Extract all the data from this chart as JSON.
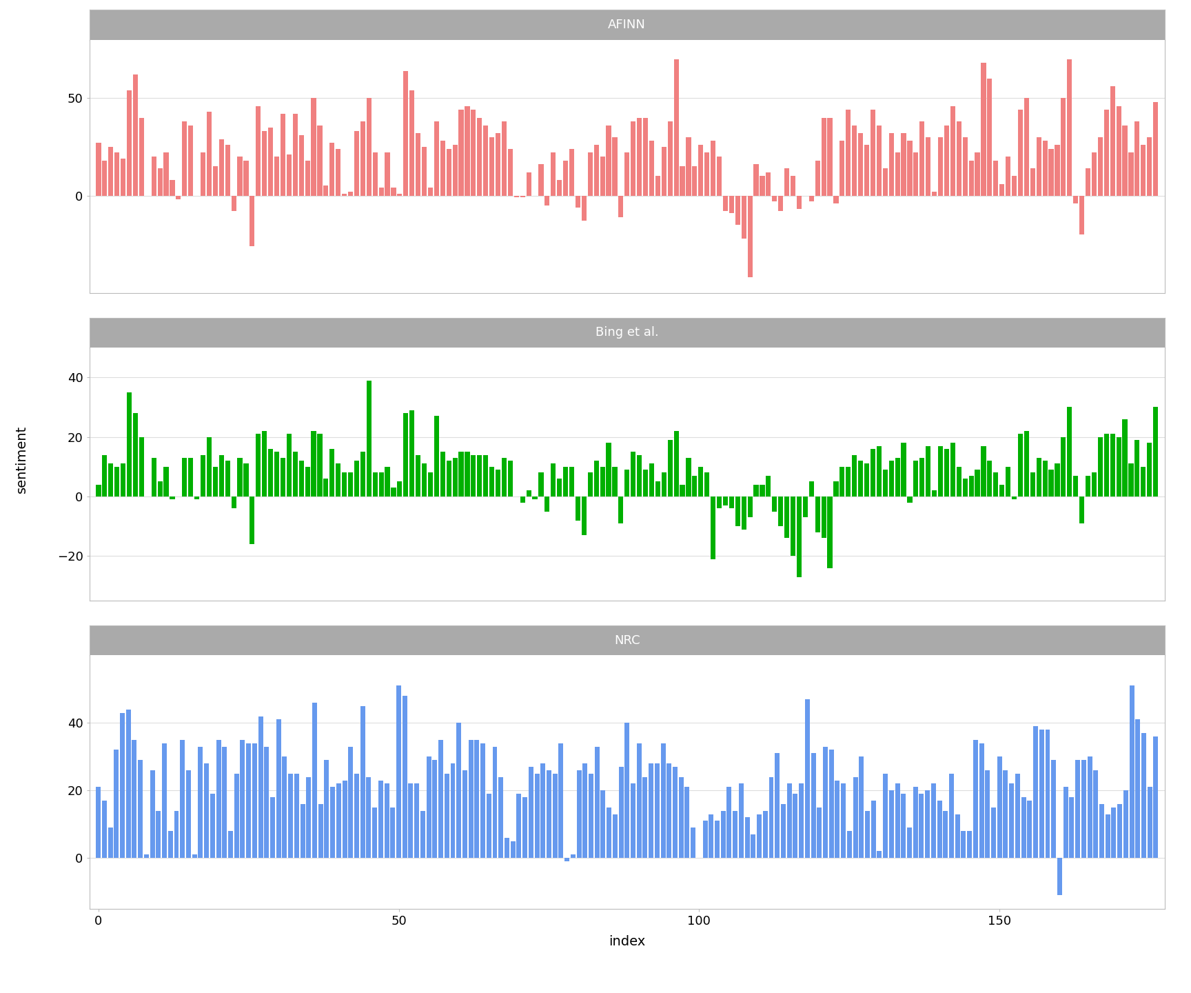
{
  "title_afinn": "AFINN",
  "title_bing": "Bing et al.",
  "title_nrc": "NRC",
  "xlabel": "index",
  "ylabel": "sentiment",
  "color_afinn": "#F08080",
  "color_bing": "#00B000",
  "color_nrc": "#6699EE",
  "title_bg": "#AAAAAA",
  "panel_border": "#BBBBBB",
  "grid_color": "#DDDDDD",
  "afinn": [
    27,
    18,
    25,
    22,
    19,
    54,
    62,
    40,
    0,
    20,
    14,
    22,
    8,
    -2,
    38,
    36,
    0,
    22,
    43,
    15,
    29,
    26,
    -8,
    20,
    18,
    -26,
    46,
    33,
    35,
    20,
    42,
    21,
    42,
    31,
    18,
    50,
    36,
    5,
    27,
    24,
    1,
    2,
    33,
    38,
    50,
    22,
    4,
    22,
    4,
    1,
    64,
    54,
    32,
    25,
    4,
    38,
    28,
    24,
    26,
    44,
    46,
    44,
    40,
    36,
    30,
    32,
    38,
    24,
    -1,
    -1,
    12,
    0,
    16,
    -5,
    22,
    8,
    18,
    24,
    -6,
    -13,
    22,
    26,
    20,
    36,
    30,
    -11,
    22,
    38,
    40,
    40,
    28,
    10,
    25,
    38,
    70,
    15,
    30,
    15,
    26,
    22,
    28,
    20,
    -8,
    -9,
    -15,
    -22,
    -42,
    16,
    10,
    12,
    -3,
    -8,
    14,
    10,
    -7,
    0,
    -3,
    18,
    40,
    40,
    -4,
    28,
    44,
    36,
    32,
    26,
    44,
    36,
    14,
    32,
    22,
    32,
    28,
    22,
    38,
    30,
    2,
    30,
    36,
    46,
    38,
    30,
    18,
    22,
    68,
    60,
    18,
    6,
    20,
    10,
    44,
    50,
    14,
    30,
    28,
    24,
    26,
    50,
    70,
    -4,
    -20,
    14,
    22,
    30,
    44,
    56,
    46,
    36,
    22,
    38,
    26,
    30,
    48
  ],
  "bing": [
    4,
    14,
    11,
    10,
    11,
    35,
    28,
    20,
    0,
    13,
    5,
    10,
    -1,
    0,
    13,
    13,
    -1,
    14,
    20,
    10,
    14,
    12,
    -4,
    13,
    11,
    -16,
    21,
    22,
    16,
    15,
    13,
    21,
    15,
    12,
    10,
    22,
    21,
    6,
    16,
    11,
    8,
    8,
    12,
    15,
    39,
    8,
    8,
    10,
    3,
    5,
    28,
    29,
    14,
    11,
    8,
    27,
    15,
    12,
    13,
    15,
    15,
    14,
    14,
    14,
    10,
    9,
    13,
    12,
    0,
    -2,
    2,
    -1,
    8,
    -5,
    11,
    6,
    10,
    10,
    -8,
    -13,
    8,
    12,
    10,
    18,
    10,
    -9,
    9,
    15,
    14,
    9,
    11,
    5,
    8,
    19,
    22,
    4,
    13,
    7,
    10,
    8,
    -21,
    -4,
    -3,
    -4,
    -10,
    -11,
    -7,
    4,
    4,
    7,
    -5,
    -10,
    -14,
    -20,
    -27,
    -7,
    5,
    -12,
    -14,
    -24,
    5,
    10,
    10,
    14,
    12,
    11,
    16,
    17,
    9,
    12,
    13,
    18,
    -2,
    12,
    13,
    17,
    2,
    17,
    16,
    18,
    10,
    6,
    7,
    9,
    17,
    12,
    8,
    4,
    10,
    -1,
    21,
    22,
    8,
    13,
    12,
    9,
    11,
    20,
    30,
    7,
    -9,
    7,
    8,
    20,
    21,
    21,
    20,
    26,
    11,
    19,
    10,
    18,
    30
  ],
  "nrc": [
    21,
    17,
    9,
    32,
    43,
    44,
    35,
    29,
    1,
    26,
    14,
    34,
    8,
    14,
    35,
    26,
    1,
    33,
    28,
    19,
    35,
    33,
    8,
    25,
    35,
    34,
    34,
    42,
    33,
    18,
    41,
    30,
    25,
    25,
    16,
    24,
    46,
    16,
    29,
    21,
    22,
    23,
    33,
    25,
    45,
    24,
    15,
    23,
    22,
    15,
    51,
    48,
    22,
    22,
    14,
    30,
    29,
    35,
    25,
    28,
    40,
    26,
    35,
    35,
    34,
    19,
    33,
    24,
    6,
    5,
    19,
    18,
    27,
    25,
    28,
    26,
    25,
    34,
    -1,
    1,
    26,
    28,
    25,
    33,
    20,
    15,
    13,
    27,
    40,
    22,
    34,
    24,
    28,
    28,
    34,
    28,
    27,
    24,
    21,
    9,
    0,
    11,
    13,
    11,
    14,
    21,
    14,
    22,
    12,
    7,
    13,
    14,
    24,
    31,
    16,
    22,
    19,
    22,
    47,
    31,
    15,
    33,
    32,
    23,
    22,
    8,
    24,
    30,
    14,
    17,
    2,
    25,
    20,
    22,
    19,
    9,
    21,
    19,
    20,
    22,
    17,
    14,
    25,
    13,
    8,
    8,
    35,
    34,
    26,
    15,
    30,
    26,
    22,
    25,
    18,
    17,
    39,
    38,
    38,
    29,
    -11,
    21,
    18,
    29,
    29,
    30,
    26,
    16,
    13,
    15,
    16,
    20,
    51,
    41,
    37,
    21,
    36
  ],
  "afinn_ylim": [
    -50,
    80
  ],
  "afinn_yticks": [
    0,
    50
  ],
  "bing_ylim": [
    -35,
    50
  ],
  "bing_yticks": [
    -20,
    0,
    20,
    40
  ],
  "nrc_ylim": [
    -15,
    60
  ],
  "nrc_yticks": [
    0,
    20,
    40
  ],
  "xticks": [
    0,
    50,
    100,
    150
  ]
}
